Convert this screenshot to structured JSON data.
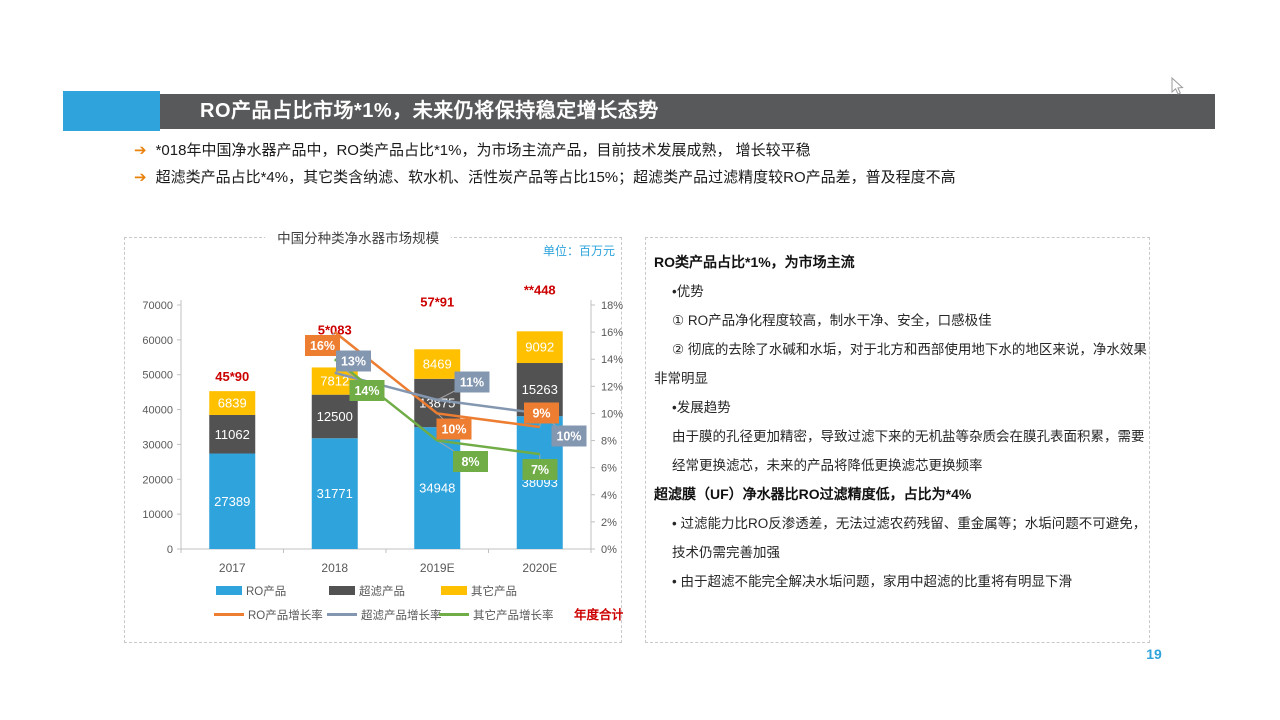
{
  "header": {
    "title": "RO产品占比市场*1%，未来仍将保持稳定增长态势",
    "accent_color": "#2EA3DC",
    "bar_color": "#58595B"
  },
  "icons": {
    "bullet_arrow": "➔"
  },
  "bullets": [
    {
      "text": "*018年中国净水器产品中，RO类产品占比*1%，为市场主流产品，目前技术发展成熟， 增长较平稳"
    },
    {
      "text": "超滤类产品占比*4%，其它类含纳滤、软水机、活性炭产品等占比15%；超滤类产品过滤精度较RO产品差，普及程度不高"
    }
  ],
  "chart_data": {
    "type": "bar",
    "subtype": "stacked-bar-with-growth-lines",
    "title": "中国分种类净水器市场规模",
    "unit_label": "单位：百万元",
    "categories": [
      "2017",
      "2018",
      "2019E",
      "2020E"
    ],
    "bar_series": [
      {
        "name": "RO产品",
        "color": "#2EA3DC",
        "values": [
          27389,
          31771,
          34948,
          38093
        ]
      },
      {
        "name": "超滤产品",
        "color": "#525252",
        "values": [
          11062,
          12500,
          13875,
          15263
        ]
      },
      {
        "name": "其它产品",
        "color": "#FFC000",
        "values": [
          6839,
          7812,
          8469,
          9092
        ]
      }
    ],
    "line_series": [
      {
        "name": "RO产品增长率",
        "color": "#ED7D31",
        "values": [
          null,
          16,
          10,
          9
        ]
      },
      {
        "name": "超滤产品增长率",
        "color": "#8497B0",
        "values": [
          null,
          13,
          11,
          10
        ]
      },
      {
        "name": "其它产品增长率",
        "color": "#70AD47",
        "values": [
          null,
          14,
          8,
          7
        ]
      }
    ],
    "totals": [
      "45*90",
      "5*083",
      "57*91",
      "**448"
    ],
    "totals_color": "#CC0000",
    "annual_total_label": "年度合计",
    "annual_total_color": "#CC0000",
    "left_axis": {
      "min": 0,
      "max": 70000,
      "step": 10000
    },
    "right_axis": {
      "min": 0,
      "max": 18,
      "step": 2,
      "format": "%"
    },
    "legend_position": "bottom",
    "grid": false,
    "layout": {
      "total_dy": [
        10,
        33,
        43,
        37
      ],
      "line_labels": [
        [
          null,
          [
            197.5,
            107.5
          ],
          [
            329,
            191
          ],
          [
            416.5,
            175
          ]
        ],
        [
          null,
          [
            228.5,
            123
          ],
          [
            347,
            144
          ],
          [
            444,
            198
          ]
        ],
        [
          null,
          [
            242,
            152.5
          ],
          [
            345.5,
            223.5
          ],
          [
            415,
            231.5
          ]
        ]
      ]
    }
  },
  "right_panel": {
    "lines": [
      "RO类产品占比*1%，为市场主流",
      "•优势",
      "① RO产品净化程度较高，制水干净、安全，口感极佳",
      "② 彻底的去除了水碱和水垢，对于北方和西部使用地下水的地区来说，净水效果",
      "非常明显",
      "•发展趋势",
      "由于膜的孔径更加精密，导致过滤下来的无机盐等杂质会在膜孔表面积累，需要",
      "经常更换滤芯，未来的产品将降低更换滤芯更换频率",
      "超滤膜（UF）净水器比RO过滤精度低，占比为*4%",
      "• 过滤能力比RO反渗透差，无法过滤农药残留、重金属等；水垢问题不可避免，",
      "技术仍需完善加强",
      "• 由于超滤不能完全解决水垢问题，家用中超滤的比重将有明显下滑"
    ]
  },
  "page": {
    "number": "19"
  }
}
